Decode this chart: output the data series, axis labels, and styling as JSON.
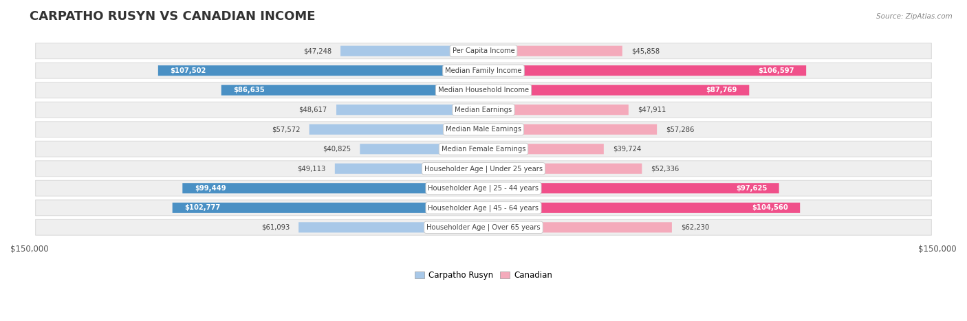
{
  "title": "CARPATHO RUSYN VS CANADIAN INCOME",
  "source": "Source: ZipAtlas.com",
  "categories": [
    "Per Capita Income",
    "Median Family Income",
    "Median Household Income",
    "Median Earnings",
    "Median Male Earnings",
    "Median Female Earnings",
    "Householder Age | Under 25 years",
    "Householder Age | 25 - 44 years",
    "Householder Age | 45 - 64 years",
    "Householder Age | Over 65 years"
  ],
  "carpatho_rusyn": [
    47248,
    107502,
    86635,
    48617,
    57572,
    40825,
    49113,
    99449,
    102777,
    61093
  ],
  "canadian": [
    45858,
    106597,
    87769,
    47911,
    57286,
    39724,
    52336,
    97625,
    104560,
    62230
  ],
  "max_val": 150000,
  "blue_light": "#A8C8E8",
  "blue_dark": "#4A90C4",
  "pink_light": "#F4AABB",
  "pink_dark": "#F0508A",
  "bg_row_color": "#EFEFEF",
  "bg_row_edge": "#DDDDDD",
  "threshold": 70000,
  "title_fontsize": 13,
  "tick_label": "$150,000",
  "legend_blue": "Carpatho Rusyn",
  "legend_pink": "Canadian"
}
